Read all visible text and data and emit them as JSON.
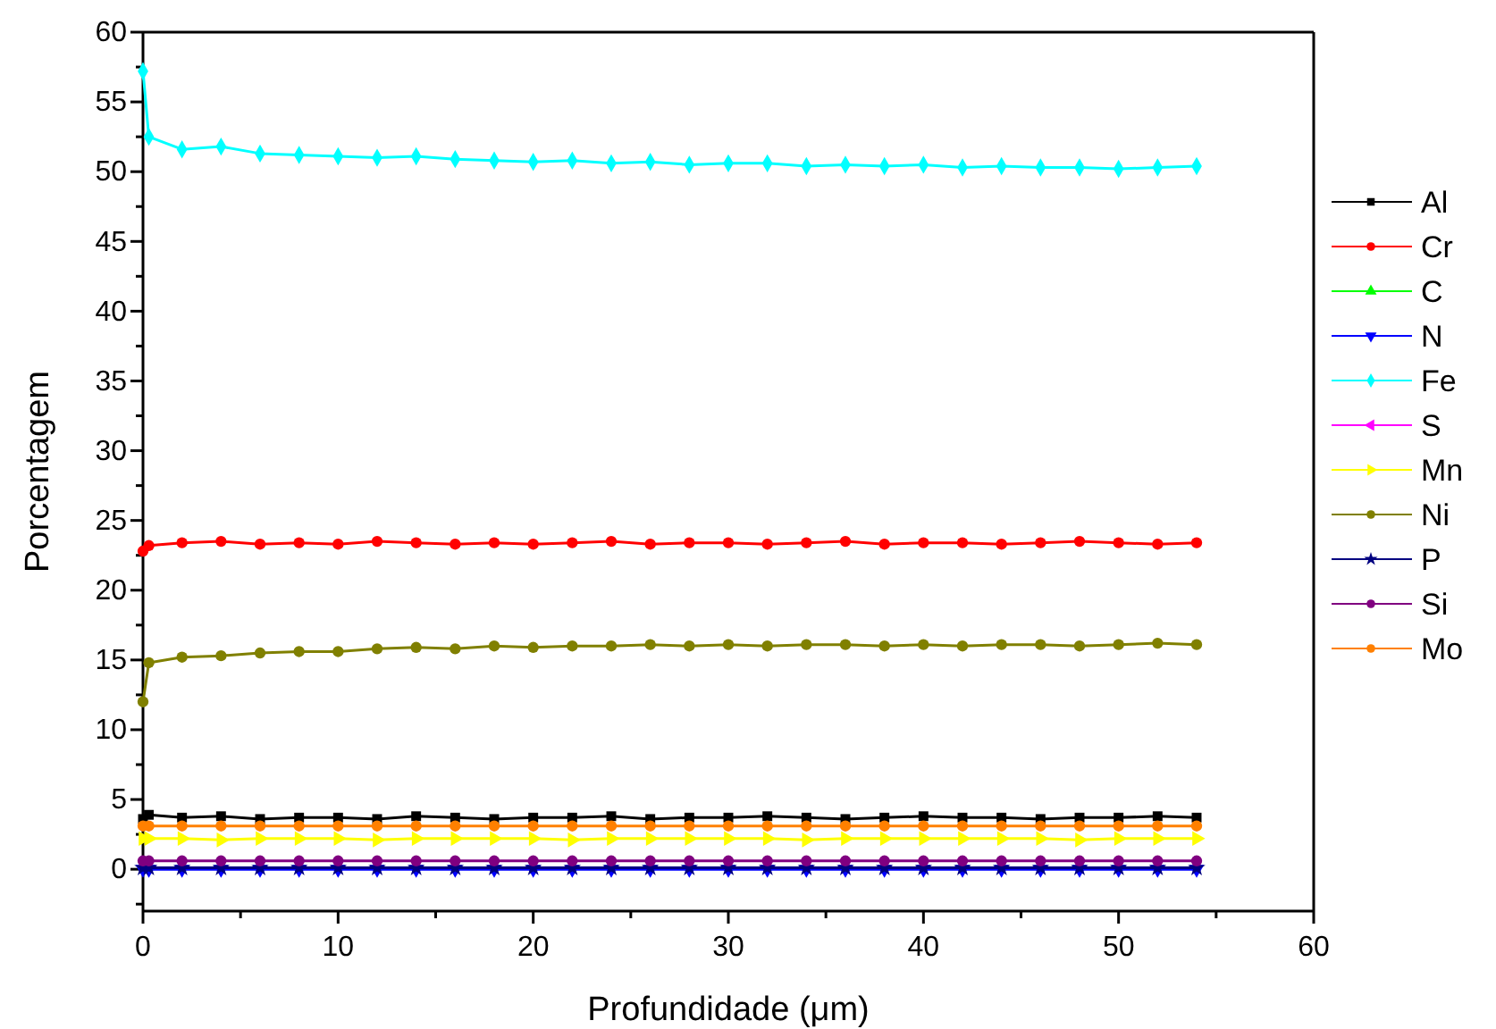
{
  "chart_data": {
    "type": "line",
    "xlabel": "Profundidade (μm)",
    "ylabel": "Porcentagem",
    "x": [
      0,
      0.3,
      2,
      4,
      6,
      8,
      10,
      12,
      14,
      16,
      18,
      20,
      22,
      24,
      26,
      28,
      30,
      32,
      34,
      36,
      38,
      40,
      42,
      44,
      46,
      48,
      50,
      52,
      54
    ],
    "xlim": [
      0,
      60
    ],
    "ylim": [
      -3,
      60
    ],
    "xticks": [
      0,
      {
        "value": 5,
        "label": null
      },
      10,
      {
        "value": 15,
        "label": null
      },
      20,
      {
        "value": 25,
        "label": null
      },
      30,
      {
        "value": 35,
        "label": null
      },
      40,
      {
        "value": 45,
        "label": null
      },
      50,
      {
        "value": 55,
        "label": null
      },
      60
    ],
    "yticks": [
      {
        "value": -2.5,
        "label": null
      },
      0,
      {
        "value": 2.5,
        "label": null
      },
      5,
      {
        "value": 7.5,
        "label": null
      },
      10,
      {
        "value": 12.5,
        "label": null
      },
      15,
      {
        "value": 17.5,
        "label": null
      },
      20,
      {
        "value": 22.5,
        "label": null
      },
      25,
      {
        "value": 27.5,
        "label": null
      },
      30,
      {
        "value": 32.5,
        "label": null
      },
      35,
      {
        "value": 37.5,
        "label": null
      },
      40,
      {
        "value": 42.5,
        "label": null
      },
      45,
      {
        "value": 47.5,
        "label": null
      },
      50,
      {
        "value": 52.5,
        "label": null
      },
      55,
      {
        "value": 57.5,
        "label": null
      },
      60
    ],
    "grid": false,
    "legend": "right",
    "series": [
      {
        "name": "Al",
        "color": "#000000",
        "marker": "square",
        "values": [
          3.6,
          3.9,
          3.7,
          3.8,
          3.6,
          3.7,
          3.7,
          3.6,
          3.8,
          3.7,
          3.6,
          3.7,
          3.7,
          3.8,
          3.6,
          3.7,
          3.7,
          3.8,
          3.7,
          3.6,
          3.7,
          3.8,
          3.7,
          3.7,
          3.6,
          3.7,
          3.7,
          3.8,
          3.7
        ]
      },
      {
        "name": "Cr",
        "color": "#ff0000",
        "marker": "circle",
        "values": [
          22.8,
          23.2,
          23.4,
          23.5,
          23.3,
          23.4,
          23.3,
          23.5,
          23.4,
          23.3,
          23.4,
          23.3,
          23.4,
          23.5,
          23.3,
          23.4,
          23.4,
          23.3,
          23.4,
          23.5,
          23.3,
          23.4,
          23.4,
          23.3,
          23.4,
          23.5,
          23.4,
          23.3,
          23.4
        ]
      },
      {
        "name": "C",
        "color": "#00ff00",
        "marker": "triangle",
        "values": [
          null,
          null,
          null,
          null,
          null,
          null,
          null,
          null,
          null,
          null,
          null,
          null,
          null,
          null,
          null,
          null,
          null,
          null,
          null,
          null,
          null,
          null,
          null,
          null,
          null,
          null,
          null,
          null,
          null
        ]
      },
      {
        "name": "N",
        "color": "#0000ff",
        "marker": "triangle-down",
        "values": [
          0,
          0,
          0,
          0,
          0,
          0,
          0,
          0,
          0,
          0,
          0,
          0,
          0,
          0,
          0,
          0,
          0,
          0,
          0,
          0,
          0,
          0,
          0,
          0,
          0,
          0,
          0,
          0,
          0
        ]
      },
      {
        "name": "Fe",
        "color": "#00ffff",
        "marker": "diamond",
        "values": [
          57.2,
          52.5,
          51.6,
          51.8,
          51.3,
          51.2,
          51.1,
          51.0,
          51.1,
          50.9,
          50.8,
          50.7,
          50.8,
          50.6,
          50.7,
          50.5,
          50.6,
          50.6,
          50.4,
          50.5,
          50.4,
          50.5,
          50.3,
          50.4,
          50.3,
          50.3,
          50.2,
          50.3,
          50.4
        ]
      },
      {
        "name": "S",
        "color": "#ff00ff",
        "marker": "triangle-left",
        "values": [
          null,
          null,
          null,
          null,
          null,
          null,
          null,
          null,
          null,
          null,
          null,
          null,
          null,
          null,
          null,
          null,
          null,
          null,
          null,
          null,
          null,
          null,
          null,
          null,
          null,
          null,
          null,
          null,
          null
        ]
      },
      {
        "name": "Mn",
        "color": "#ffff00",
        "marker": "triangle-right",
        "values": [
          2.2,
          2.2,
          2.2,
          2.1,
          2.2,
          2.2,
          2.2,
          2.1,
          2.2,
          2.2,
          2.2,
          2.2,
          2.1,
          2.2,
          2.2,
          2.2,
          2.2,
          2.2,
          2.1,
          2.2,
          2.2,
          2.2,
          2.2,
          2.2,
          2.2,
          2.1,
          2.2,
          2.2,
          2.2
        ]
      },
      {
        "name": "Ni",
        "color": "#808000",
        "marker": "circle",
        "values": [
          12.0,
          14.8,
          15.2,
          15.3,
          15.5,
          15.6,
          15.6,
          15.8,
          15.9,
          15.8,
          16.0,
          15.9,
          16.0,
          16.0,
          16.1,
          16.0,
          16.1,
          16.0,
          16.1,
          16.1,
          16.0,
          16.1,
          16.0,
          16.1,
          16.1,
          16.0,
          16.1,
          16.2,
          16.1
        ]
      },
      {
        "name": "P",
        "color": "#000080",
        "marker": "star",
        "values": [
          0.1,
          0.1,
          0.1,
          0.1,
          0.1,
          0.1,
          0.1,
          0.1,
          0.1,
          0.1,
          0.1,
          0.1,
          0.1,
          0.1,
          0.1,
          0.1,
          0.1,
          0.1,
          0.1,
          0.1,
          0.1,
          0.1,
          0.1,
          0.1,
          0.1,
          0.1,
          0.1,
          0.1,
          0.1
        ]
      },
      {
        "name": "Si",
        "color": "#800080",
        "marker": "circle",
        "values": [
          0.6,
          0.6,
          0.6,
          0.6,
          0.6,
          0.6,
          0.6,
          0.6,
          0.6,
          0.6,
          0.6,
          0.6,
          0.6,
          0.6,
          0.6,
          0.6,
          0.6,
          0.6,
          0.6,
          0.6,
          0.6,
          0.6,
          0.6,
          0.6,
          0.6,
          0.6,
          0.6,
          0.6,
          0.6
        ]
      },
      {
        "name": "Mo",
        "color": "#ff8000",
        "marker": "circle",
        "values": [
          3.1,
          3.1,
          3.1,
          3.1,
          3.1,
          3.1,
          3.1,
          3.1,
          3.1,
          3.1,
          3.1,
          3.1,
          3.1,
          3.1,
          3.1,
          3.1,
          3.1,
          3.1,
          3.1,
          3.1,
          3.1,
          3.1,
          3.1,
          3.1,
          3.1,
          3.1,
          3.1,
          3.1,
          3.1
        ]
      }
    ]
  }
}
